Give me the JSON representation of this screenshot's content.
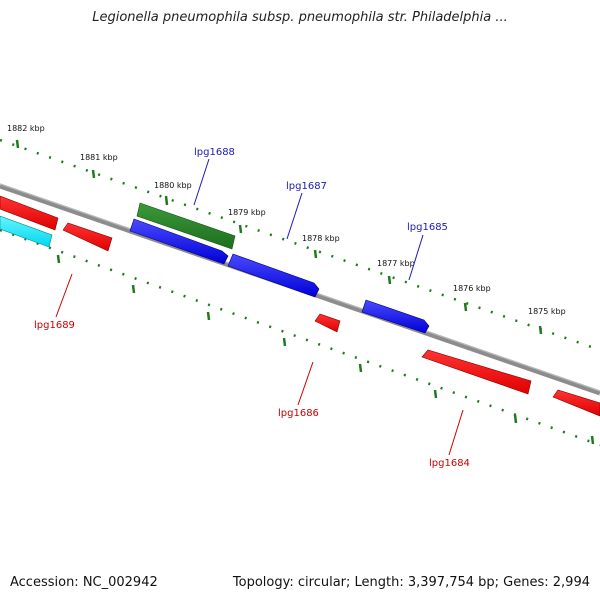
{
  "title": "Legionella pneumophila subsp. pneumophila str. Philadelphia ...",
  "footer": {
    "accession": "Accession: NC_002942",
    "topology": "Topology: circular; Length: 3,397,754 bp; Genes: 2,994"
  },
  "colors": {
    "backbone": "#808080",
    "ticks": "#1f7a1f",
    "forward_gene": "#0000ff",
    "reverse_gene": "#ff0000",
    "rna_gene": "#228b22",
    "other_gene": "#00e5ff",
    "forward_label": "#1a1ab3",
    "reverse_label": "#cc0000"
  },
  "scale_ticks": [
    "1882 kbp",
    "1881 kbp",
    "1880 kbp",
    "1879 kbp",
    "1878 kbp",
    "1877 kbp",
    "1876 kbp",
    "1875 kbp"
  ],
  "gene_labels": [
    "lpg1688",
    "lpg1687",
    "lpg1685",
    "lpg1689",
    "lpg1686",
    "lpg1684"
  ]
}
